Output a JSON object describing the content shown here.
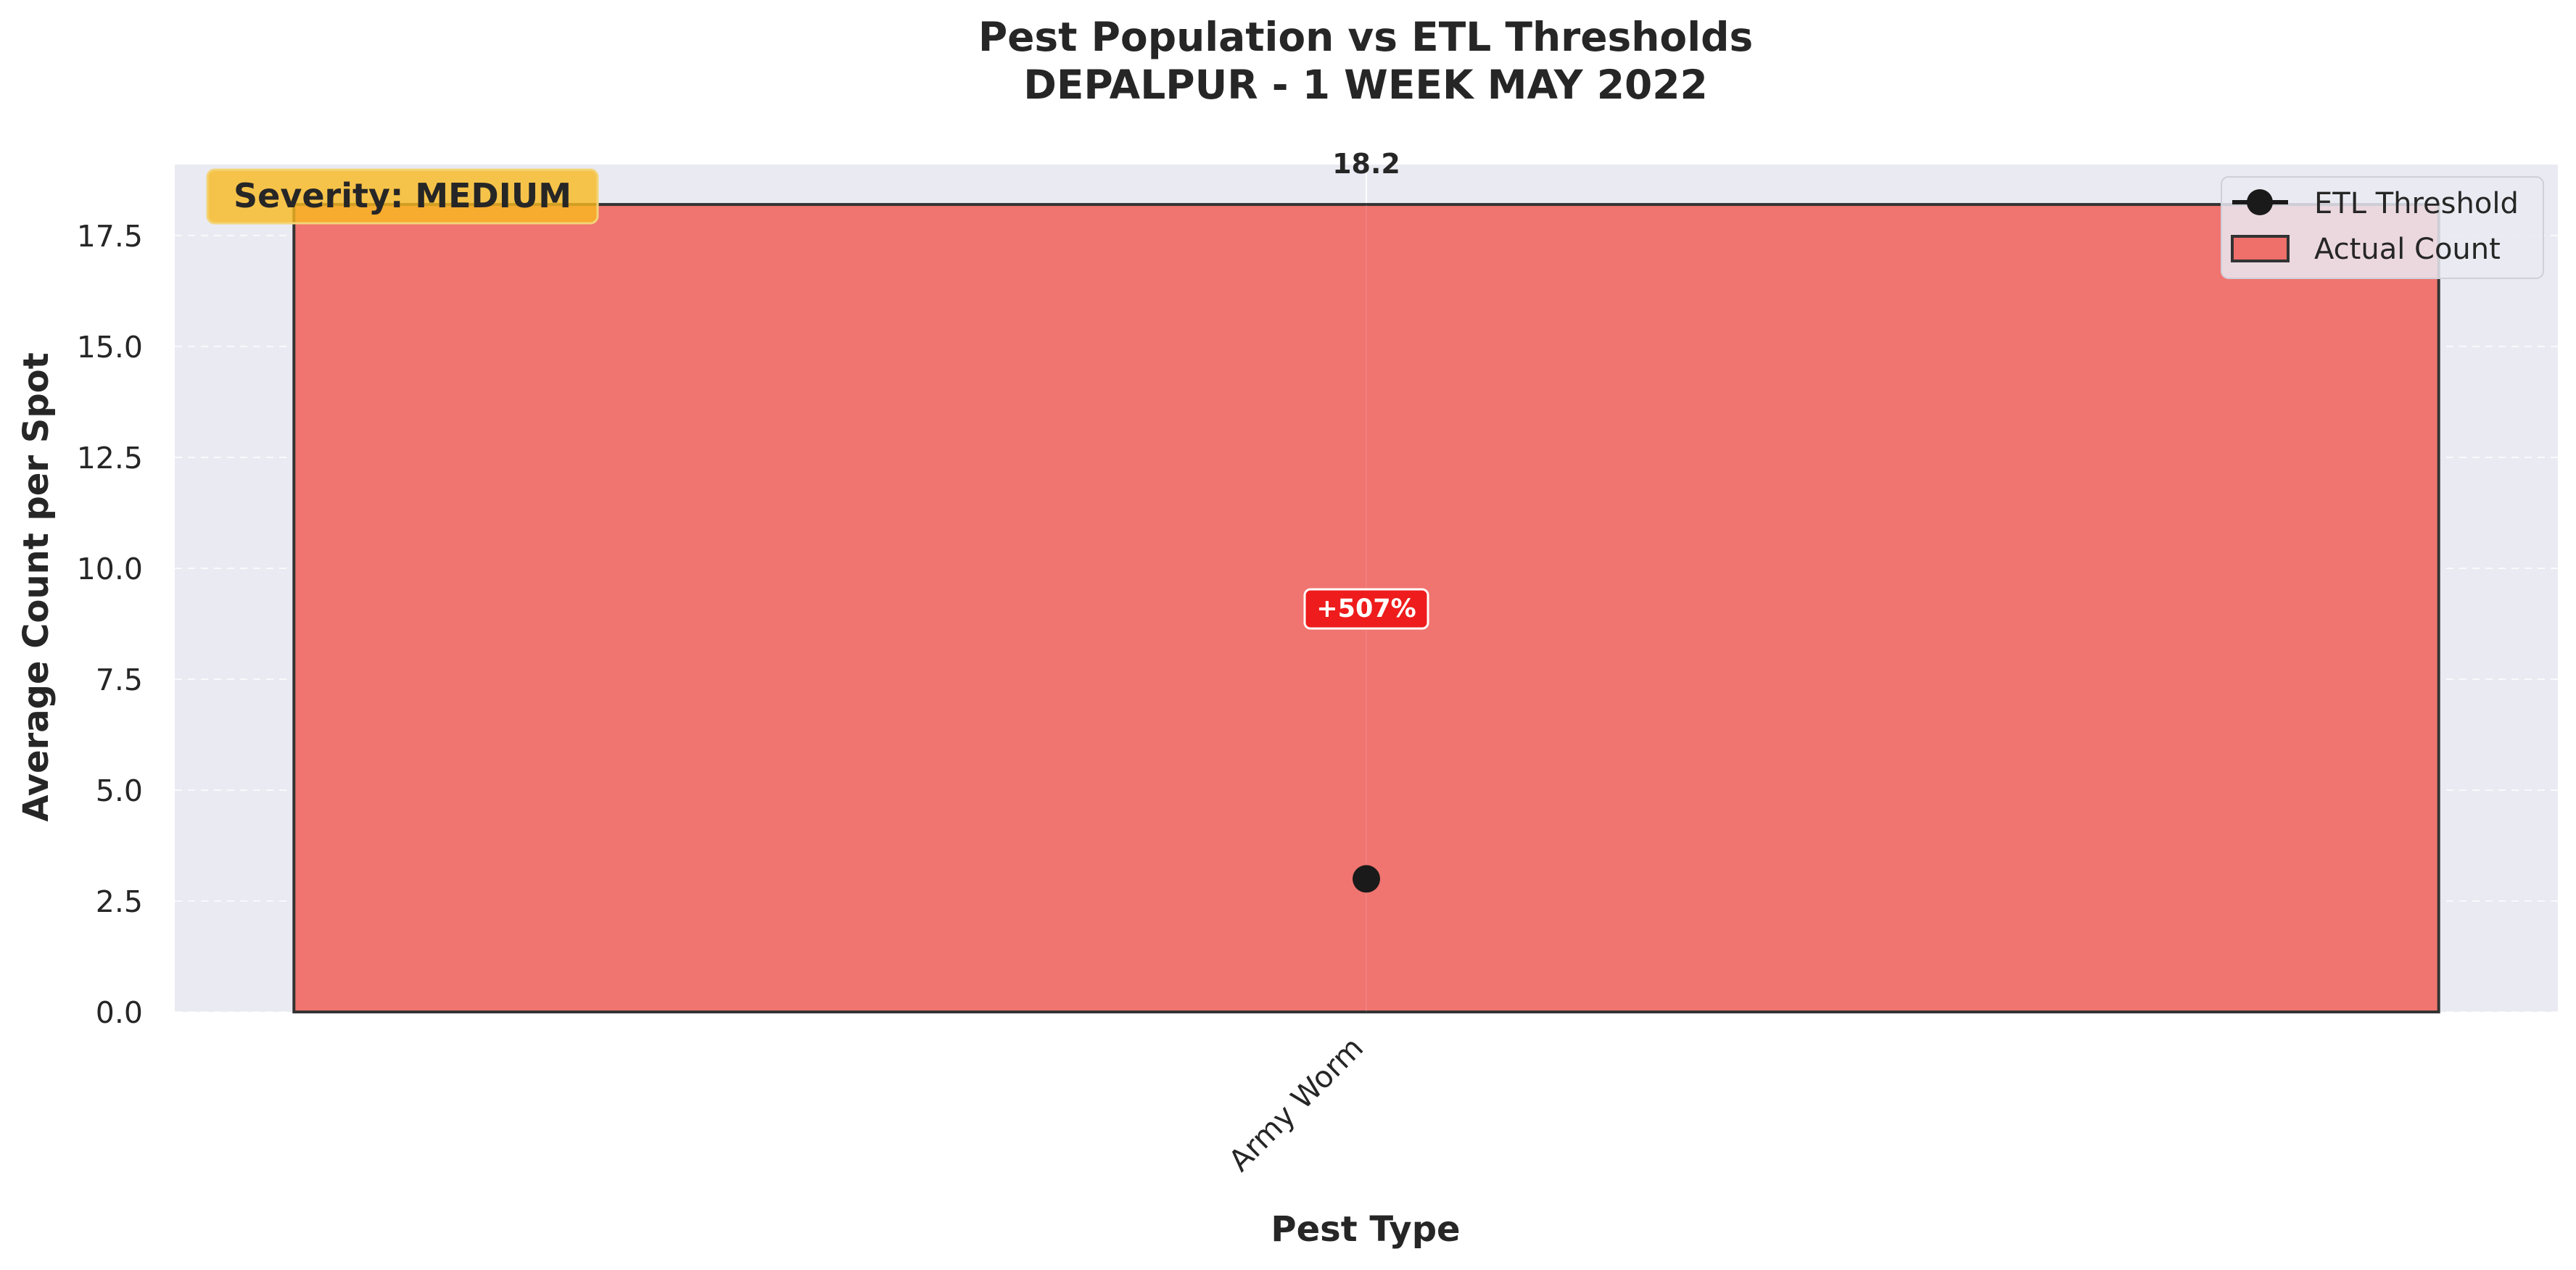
{
  "chart_data": {
    "type": "bar",
    "title_line1": "Pest Population vs ETL Thresholds",
    "title_line2": "DEPALPUR - 1 WEEK MAY 2022",
    "xlabel": "Pest Type",
    "ylabel": "Average Count per Spot",
    "categories": [
      "Army Worm"
    ],
    "series": [
      {
        "name": "Actual Count",
        "values": [
          18.2
        ],
        "color": "#ef6f6a"
      },
      {
        "name": "ETL Threshold",
        "values": [
          3.0
        ],
        "color": "#1a1a1a"
      }
    ],
    "bar_value_labels": [
      "18.2"
    ],
    "exceedance_labels": [
      "+507%"
    ],
    "exceedance_color": "#ee1c1c",
    "severity_label": "Severity: MEDIUM",
    "severity_color": "#f9b91f",
    "ylim": [
      0,
      19.1
    ],
    "yticks": [
      0.0,
      2.5,
      5.0,
      7.5,
      10.0,
      12.5,
      15.0,
      17.5
    ],
    "ytick_labels": [
      "0.0",
      "2.5",
      "5.0",
      "7.5",
      "10.0",
      "12.5",
      "15.0",
      "17.5"
    ],
    "grid": true,
    "legend_position": "top-right",
    "legend": [
      "ETL Threshold",
      "Actual Count"
    ],
    "plot_background": "#eaeaf2"
  }
}
